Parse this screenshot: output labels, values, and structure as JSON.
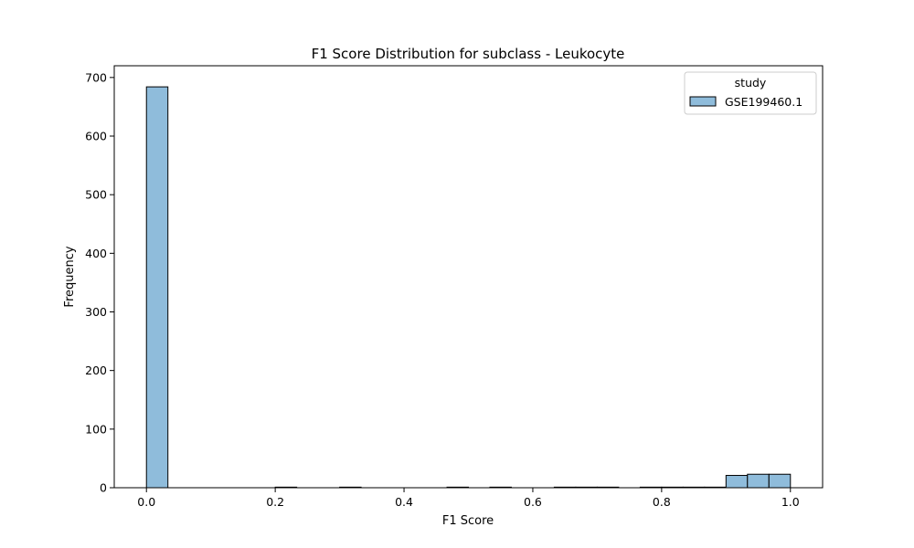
{
  "chart_data": {
    "type": "bar",
    "title": "F1 Score Distribution for subclass - Leukocyte",
    "xlabel": "F1 Score",
    "ylabel": "Frequency",
    "xlim": [
      -0.05,
      1.05
    ],
    "ylim": [
      0,
      720
    ],
    "xticks": [
      0.0,
      0.2,
      0.4,
      0.6,
      0.8,
      1.0
    ],
    "xtick_labels": [
      "0.0",
      "0.2",
      "0.4",
      "0.6",
      "0.8",
      "1.0"
    ],
    "yticks": [
      0,
      100,
      200,
      300,
      400,
      500,
      600,
      700
    ],
    "ytick_labels": [
      "0",
      "100",
      "200",
      "300",
      "400",
      "500",
      "600",
      "700"
    ],
    "bin_width": 0.03333,
    "bins": [
      {
        "x0": 0.0,
        "value": 684
      },
      {
        "x0": 0.2,
        "value": 1
      },
      {
        "x0": 0.3,
        "value": 1
      },
      {
        "x0": 0.4667,
        "value": 1
      },
      {
        "x0": 0.5333,
        "value": 1
      },
      {
        "x0": 0.6333,
        "value": 1
      },
      {
        "x0": 0.6667,
        "value": 1
      },
      {
        "x0": 0.7,
        "value": 1
      },
      {
        "x0": 0.7667,
        "value": 1
      },
      {
        "x0": 0.8,
        "value": 1
      },
      {
        "x0": 0.8333,
        "value": 1
      },
      {
        "x0": 0.8667,
        "value": 1
      },
      {
        "x0": 0.9,
        "value": 21
      },
      {
        "x0": 0.9333,
        "value": 23
      },
      {
        "x0": 0.9667,
        "value": 23
      }
    ],
    "legend": {
      "title": "study",
      "position": "top-right",
      "entries": [
        {
          "name": "GSE199460.1",
          "color": "#8fbcdb"
        }
      ]
    },
    "bar_color": "#8fbcdb",
    "edge_color": "#000000",
    "grid": false
  }
}
